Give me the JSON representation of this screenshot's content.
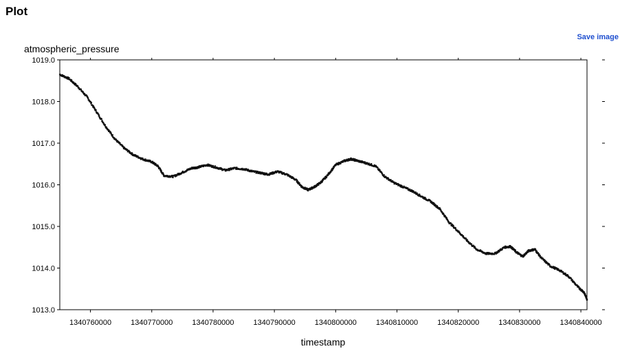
{
  "page": {
    "title": "Plot",
    "save_label": "Save image"
  },
  "colors": {
    "accent_link": "#1f4fcf",
    "series": "#111111",
    "axis": "#000000"
  },
  "chart_data": {
    "type": "scatter",
    "ylabel": "atmospheric_pressure",
    "xlabel": "timestamp",
    "xlim": [
      1340755000,
      1340841000
    ],
    "ylim": [
      1013.0,
      1019.0
    ],
    "xticks": [
      1340760000,
      1340770000,
      1340780000,
      1340790000,
      1340800000,
      1340810000,
      1340820000,
      1340830000,
      1340840000
    ],
    "xtick_labels": [
      "1340760000",
      "1340770000",
      "1340780000",
      "1340790000",
      "1340800000",
      "1340810000",
      "1340820000",
      "1340830000",
      "1340840000"
    ],
    "yticks": [
      1013.0,
      1014.0,
      1015.0,
      1016.0,
      1017.0,
      1018.0,
      1019.0
    ],
    "ytick_labels": [
      "1013.0",
      "1014.0",
      "1015.0",
      "1016.0",
      "1017.0",
      "1018.0",
      "1019.0"
    ],
    "grid": false,
    "series": [
      {
        "x": [
          1340755000,
          1340756500,
          1340758000,
          1340759500,
          1340761000,
          1340762500,
          1340764000,
          1340765500,
          1340767000,
          1340768500,
          1340770000,
          1340771000,
          1340772000,
          1340773500,
          1340775000,
          1340776500,
          1340777500,
          1340779000,
          1340780500,
          1340782000,
          1340783500,
          1340785000,
          1340786500,
          1340788000,
          1340789000,
          1340790500,
          1340792000,
          1340793500,
          1340794500,
          1340795500,
          1340796500,
          1340797500,
          1340798500,
          1340800000,
          1340801500,
          1340802500,
          1340803500,
          1340805000,
          1340806500,
          1340808000,
          1340809500,
          1340811000,
          1340812500,
          1340814000,
          1340815500,
          1340817000,
          1340818500,
          1340820000,
          1340821500,
          1340823000,
          1340824500,
          1340826000,
          1340827500,
          1340828500,
          1340829500,
          1340830500,
          1340831500,
          1340832500,
          1340833500,
          1340835000,
          1340836500,
          1340838000,
          1340839500,
          1340840500,
          1340841000
        ],
        "y": [
          1018.65,
          1018.55,
          1018.35,
          1018.1,
          1017.75,
          1017.4,
          1017.1,
          1016.88,
          1016.72,
          1016.62,
          1016.55,
          1016.45,
          1016.22,
          1016.2,
          1016.3,
          1016.4,
          1016.42,
          1016.48,
          1016.42,
          1016.35,
          1016.4,
          1016.38,
          1016.32,
          1016.28,
          1016.25,
          1016.32,
          1016.25,
          1016.12,
          1015.95,
          1015.88,
          1015.95,
          1016.05,
          1016.2,
          1016.48,
          1016.58,
          1016.62,
          1016.58,
          1016.52,
          1016.45,
          1016.2,
          1016.05,
          1015.95,
          1015.85,
          1015.72,
          1015.6,
          1015.42,
          1015.1,
          1014.88,
          1014.65,
          1014.45,
          1014.35,
          1014.35,
          1014.5,
          1014.52,
          1014.38,
          1014.28,
          1014.42,
          1014.45,
          1014.25,
          1014.05,
          1013.95,
          1013.8,
          1013.55,
          1013.42,
          1013.25
        ]
      }
    ]
  }
}
